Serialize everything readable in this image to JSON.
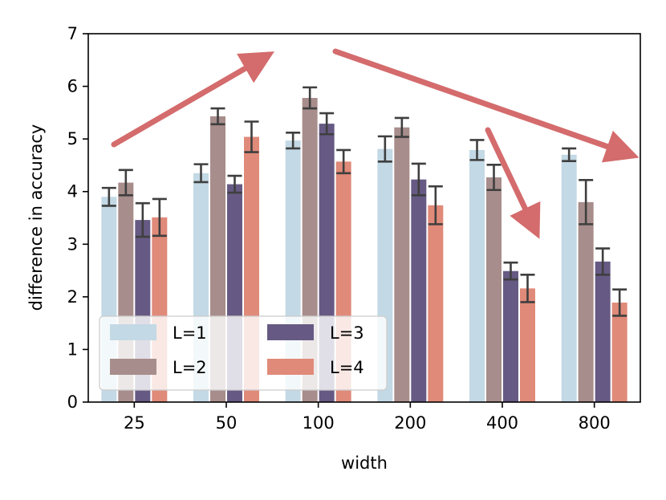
{
  "chart_data": {
    "type": "bar",
    "title": "",
    "xlabel": "width",
    "ylabel": "difference in accuracy",
    "ylim": [
      0,
      7
    ],
    "yticks": [
      0,
      1,
      2,
      3,
      4,
      5,
      6,
      7
    ],
    "categories": [
      "25",
      "50",
      "100",
      "200",
      "400",
      "800"
    ],
    "series": [
      {
        "name": "L=1",
        "color": "#c3d9e5",
        "values": [
          3.9,
          4.35,
          4.97,
          4.81,
          4.79,
          4.7
        ],
        "errors": [
          0.17,
          0.17,
          0.15,
          0.24,
          0.19,
          0.12
        ]
      },
      {
        "name": "L=2",
        "color": "#a78d8b",
        "values": [
          4.17,
          5.43,
          5.78,
          5.22,
          4.27,
          3.8
        ],
        "errors": [
          0.24,
          0.15,
          0.2,
          0.18,
          0.24,
          0.42
        ]
      },
      {
        "name": "L=3",
        "color": "#665a84",
        "values": [
          3.46,
          4.14,
          5.29,
          4.23,
          2.49,
          2.67
        ],
        "errors": [
          0.32,
          0.16,
          0.2,
          0.3,
          0.16,
          0.25
        ]
      },
      {
        "name": "L=4",
        "color": "#e08a79",
        "values": [
          3.51,
          5.04,
          4.57,
          3.74,
          2.16,
          1.89
        ],
        "errors": [
          0.35,
          0.29,
          0.22,
          0.36,
          0.26,
          0.25
        ]
      }
    ],
    "legend": {
      "location": "lower left",
      "columns": 2
    },
    "annotations": [
      {
        "type": "arrow",
        "color": "#d46b6c",
        "description": "rising trend from 25 to 100"
      },
      {
        "type": "arrow",
        "color": "#d46b6c",
        "description": "falling trend from 100 to 800"
      },
      {
        "type": "arrow",
        "color": "#d46b6c",
        "description": "steep drop near 400"
      }
    ],
    "grid": false
  }
}
